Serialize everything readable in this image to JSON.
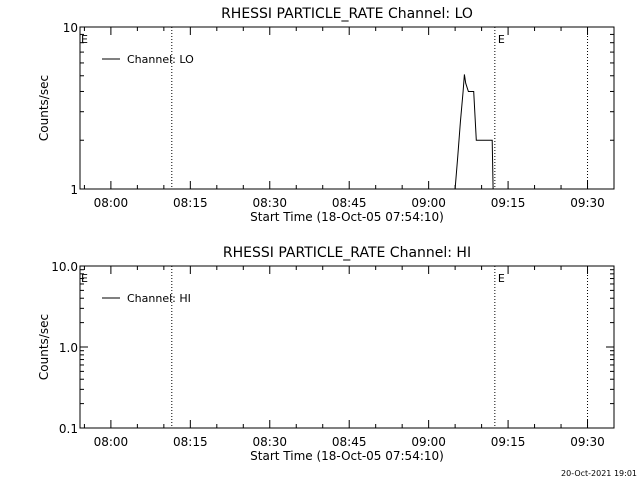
{
  "timestamp": "20-Oct-2021 19:01",
  "chart_data": [
    {
      "type": "line",
      "title": "RHESSI PARTICLE_RATE Channel: LO",
      "xlabel": "Start Time (18-Oct-05 07:54:10)",
      "ylabel": "Counts/sec",
      "yscale": "log",
      "ylim": [
        1,
        10
      ],
      "ytick_labels": [
        "1",
        "10"
      ],
      "xlim": [
        "07:54:10",
        "09:35:00"
      ],
      "xtick_labels": [
        "08:00",
        "08:15",
        "08:30",
        "08:45",
        "09:00",
        "09:15",
        "09:30"
      ],
      "legend": {
        "label": "Channel: LO",
        "position": "top-left"
      },
      "markers": [
        {
          "time": "08:11:30",
          "label": ""
        },
        {
          "time": "09:12:30",
          "label": "E"
        },
        {
          "time": "09:30:00",
          "label": ""
        }
      ],
      "corner_label": "E",
      "series": [
        {
          "x": [
            "09:05:00",
            "09:05:30",
            "09:06:00",
            "09:06:30",
            "09:06:45",
            "09:07:00",
            "09:07:30",
            "09:08:30",
            "09:09:00",
            "09:10:00",
            "09:11:00",
            "09:11:30",
            "09:12:00",
            "09:12:10"
          ],
          "y": [
            1.0,
            1.6,
            2.6,
            4.0,
            5.1,
            4.5,
            4.0,
            4.0,
            2.0,
            2.0,
            2.0,
            2.0,
            2.0,
            1.0
          ]
        }
      ]
    },
    {
      "type": "line",
      "title": "RHESSI PARTICLE_RATE Channel: HI",
      "xlabel": "Start Time (18-Oct-05 07:54:10)",
      "ylabel": "Counts/sec",
      "yscale": "log",
      "ylim": [
        0.1,
        10
      ],
      "ytick_labels": [
        "0.1",
        "1.0",
        "10.0"
      ],
      "xlim": [
        "07:54:10",
        "09:35:00"
      ],
      "xtick_labels": [
        "08:00",
        "08:15",
        "08:30",
        "08:45",
        "09:00",
        "09:15",
        "09:30"
      ],
      "legend": {
        "label": "Channel: HI",
        "position": "top-left"
      },
      "markers": [
        {
          "time": "08:11:30",
          "label": ""
        },
        {
          "time": "09:12:30",
          "label": "E"
        },
        {
          "time": "09:30:00",
          "label": ""
        }
      ],
      "corner_label": "E",
      "series": [
        {
          "x": [],
          "y": []
        }
      ]
    }
  ]
}
